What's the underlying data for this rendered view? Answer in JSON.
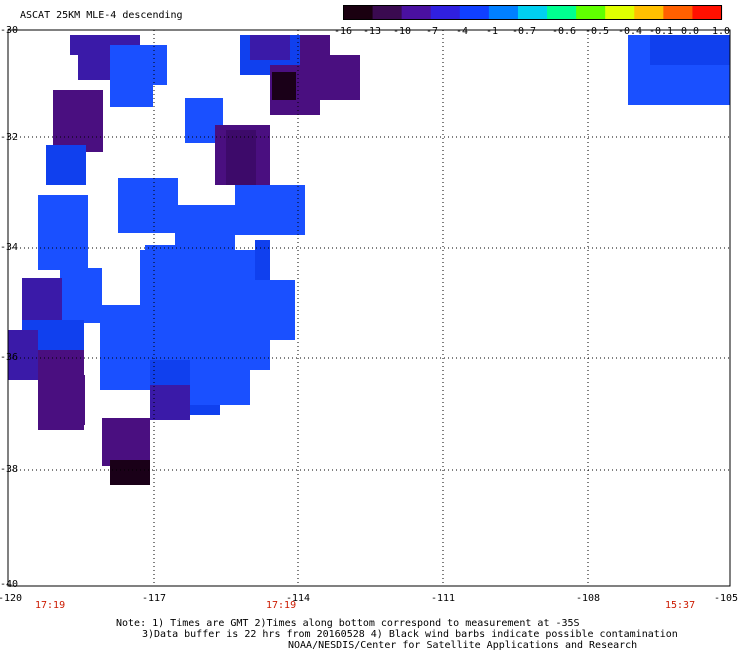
{
  "title": "ASCAT 25KM MLE-4 descending",
  "colorbar": {
    "labels": [
      "-16",
      "-13",
      "-10",
      "-7",
      "-4",
      "-1",
      "-0.7",
      "-0.6",
      "-0.5",
      "-0.4",
      "-0.1",
      "0.0",
      "1.0"
    ],
    "colors": [
      "#1a0010",
      "#3a0a50",
      "#4a10a0",
      "#3020e0",
      "#1040ff",
      "#0080ff",
      "#00d0f0",
      "#00ff90",
      "#60ff00",
      "#e0ff00",
      "#ffc000",
      "#ff6000",
      "#ff1000"
    ]
  },
  "lat_ticks": [
    "-30",
    "-32",
    "-34",
    "-36",
    "-38",
    "-40"
  ],
  "lon_ticks": [
    "-120",
    "-117",
    "-114",
    "-111",
    "-108",
    "-105"
  ],
  "times": [
    "17:19",
    "17:19",
    "15:37"
  ],
  "note_lines": [
    "Note: 1) Times are GMT 2)Times along bottom correspond to measurement at -35S",
    "3)Data buffer is 22 hrs from 20160528 4) Black wind barbs indicate possible contamination",
    "NOAA/NESDIS/Center for Satellite Applications and Research"
  ]
}
